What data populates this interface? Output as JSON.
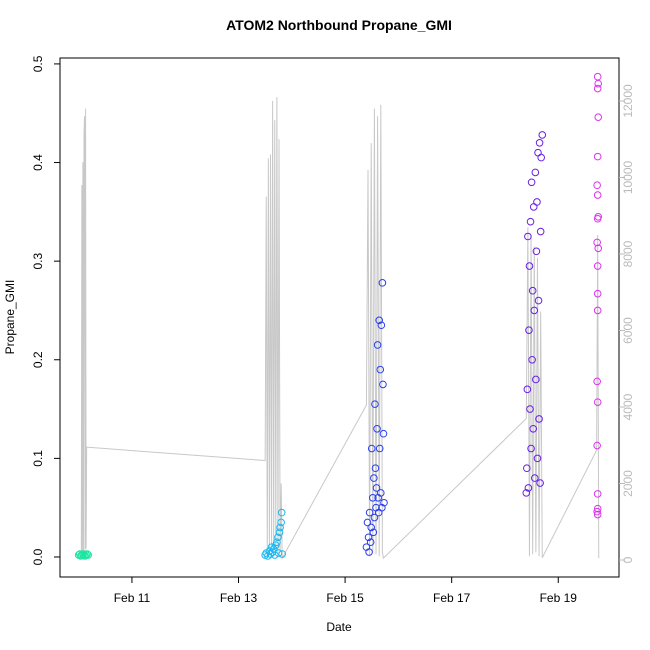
{
  "chart_data": {
    "type": "scatter",
    "title": "ATOM2 Northbound Propane_GMI",
    "x_label": "Date",
    "y_label": "Propane_GMI",
    "xlim": [
      9.65,
      20.14
    ],
    "ylim": [
      -0.0203,
      0.506
    ],
    "y2lim": [
      -444,
      13124
    ],
    "xticks": [
      {
        "value": 11,
        "label": "Feb 11"
      },
      {
        "value": 13,
        "label": "Feb 13"
      },
      {
        "value": 15,
        "label": "Feb 15"
      },
      {
        "value": 17,
        "label": "Feb 17"
      },
      {
        "value": 19,
        "label": "Feb 19"
      }
    ],
    "yticks": [
      {
        "value": 0,
        "label": "0.0"
      },
      0.1,
      0.2,
      0.3,
      0.4,
      0.5
    ],
    "y2ticks": [
      0,
      2000,
      4000,
      6000,
      8000,
      10000,
      12000
    ],
    "y2_color": "#bbbbbb",
    "series": [
      {
        "type": "line",
        "axis": "y2",
        "color": "#c8c8c8",
        "x": [
          10.05,
          10.06,
          10.07,
          10.08,
          10.09,
          10.1,
          10.11,
          10.12,
          10.13,
          10.14,
          10.15,
          13.5,
          13.52,
          13.54,
          13.56,
          13.58,
          13.6,
          13.62,
          13.64,
          13.66,
          13.68,
          13.7,
          13.72,
          13.74,
          13.76,
          13.78,
          13.8,
          13.82,
          15.4,
          15.43,
          15.46,
          15.49,
          15.52,
          15.55,
          15.58,
          15.61,
          15.64,
          15.67,
          15.7,
          15.72,
          18.4,
          18.43,
          18.46,
          18.49,
          18.52,
          18.55,
          18.58,
          18.61,
          18.64,
          18.67,
          18.7,
          19.72,
          19.74,
          19.76
        ],
        "values": [
          100,
          9800,
          200,
          10400,
          150,
          11100,
          11600,
          200,
          11800,
          300,
          2950,
          2600,
          9500,
          100,
          10500,
          150,
          10600,
          200,
          12000,
          100,
          11500,
          200,
          12100,
          150,
          11000,
          200,
          2000,
          50,
          4050,
          10200,
          100,
          10900,
          200,
          11800,
          150,
          11600,
          100,
          11900,
          200,
          50,
          3700,
          8700,
          100,
          8500,
          150,
          8200,
          200,
          7900,
          100,
          6500,
          60,
          2870,
          8500,
          50
        ]
      },
      {
        "color": "#19e6a0",
        "x": [
          10.0,
          10.02,
          10.04,
          10.06,
          10.08,
          10.1,
          10.12,
          10.14,
          10.16,
          10.18
        ],
        "values": [
          0.002,
          0.003,
          0.001,
          0.002,
          0.003,
          0.002,
          0.001,
          0.002,
          0.003,
          0.002
        ]
      },
      {
        "color": "#1ab8f0",
        "x": [
          13.5,
          13.52,
          13.55,
          13.58,
          13.6,
          13.62,
          13.64,
          13.66,
          13.68,
          13.7,
          13.72,
          13.74,
          13.75,
          13.77,
          13.78,
          13.8,
          13.81,
          13.82
        ],
        "values": [
          0.002,
          0.004,
          0.001,
          0.006,
          0.003,
          0.01,
          0.005,
          0.008,
          0.002,
          0.012,
          0.015,
          0.02,
          0.004,
          0.025,
          0.03,
          0.035,
          0.045,
          0.003
        ]
      },
      {
        "color": "#2a3ff0",
        "x": [
          15.4,
          15.42,
          15.44,
          15.45,
          15.46,
          15.48,
          15.49,
          15.5,
          15.52,
          15.53,
          15.54,
          15.55,
          15.56,
          15.57,
          15.58,
          15.59,
          15.6,
          15.61,
          15.62,
          15.63,
          15.64,
          15.65,
          15.66,
          15.67,
          15.68,
          15.69,
          15.7,
          15.71,
          15.72,
          15.73
        ],
        "values": [
          0.01,
          0.035,
          0.02,
          0.005,
          0.045,
          0.015,
          0.03,
          0.11,
          0.06,
          0.025,
          0.08,
          0.04,
          0.155,
          0.09,
          0.05,
          0.07,
          0.13,
          0.215,
          0.06,
          0.045,
          0.24,
          0.11,
          0.19,
          0.065,
          0.235,
          0.05,
          0.278,
          0.175,
          0.125,
          0.055
        ]
      },
      {
        "color": "#6a1fe8",
        "x": [
          18.4,
          18.41,
          18.42,
          18.43,
          18.44,
          18.45,
          18.46,
          18.47,
          18.48,
          18.49,
          18.5,
          18.51,
          18.52,
          18.53,
          18.54,
          18.55,
          18.56,
          18.57,
          18.58,
          18.59,
          18.6,
          18.61,
          18.62,
          18.63,
          18.64,
          18.65,
          18.66,
          18.67,
          18.68,
          18.7
        ],
        "values": [
          0.065,
          0.09,
          0.17,
          0.325,
          0.07,
          0.23,
          0.295,
          0.15,
          0.34,
          0.11,
          0.38,
          0.2,
          0.27,
          0.13,
          0.355,
          0.25,
          0.08,
          0.39,
          0.18,
          0.31,
          0.36,
          0.1,
          0.41,
          0.26,
          0.14,
          0.42,
          0.075,
          0.33,
          0.405,
          0.428
        ]
      },
      {
        "color": "#dd33ee",
        "x": [
          19.74,
          19.75,
          19.74,
          19.75,
          19.74,
          19.73,
          19.74,
          19.75,
          19.74,
          19.73,
          19.75,
          19.74,
          19.74,
          19.74,
          19.73,
          19.74,
          19.73,
          19.74,
          19.74,
          19.73,
          19.74
        ],
        "values": [
          0.487,
          0.48,
          0.475,
          0.446,
          0.406,
          0.377,
          0.367,
          0.345,
          0.343,
          0.319,
          0.313,
          0.295,
          0.267,
          0.25,
          0.178,
          0.157,
          0.113,
          0.064,
          0.049,
          0.046,
          0.043
        ]
      }
    ]
  }
}
